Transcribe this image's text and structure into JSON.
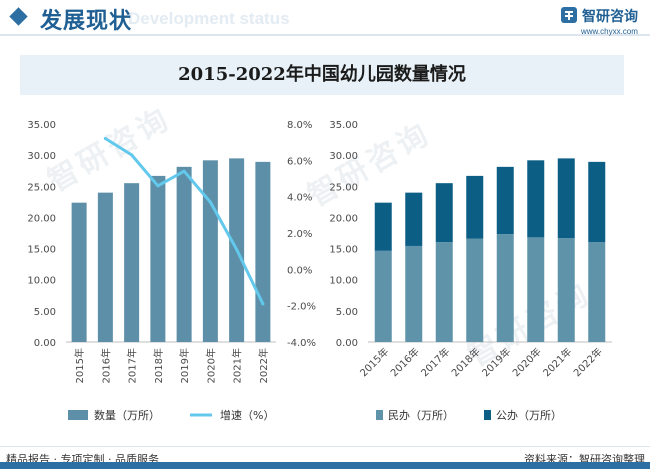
{
  "header": {
    "title": "发展现状",
    "ghost_text": "Development status",
    "logo_name": "智研咨询",
    "logo_url": "www.chyxx.com"
  },
  "watermark": {
    "text": "智研咨询",
    "color": "#c8d2de"
  },
  "colors": {
    "brand": "#2e6fa3",
    "bar": "#5d8fa8",
    "line": "#62c8ec",
    "private": "#5f93aa",
    "public": "#0d5e85"
  },
  "chart_data": [
    {
      "type": "bar+line",
      "title": "2015-2022年中国幼儿园数量情况",
      "categories": [
        "2015年",
        "2016年",
        "2017年",
        "2018年",
        "2019年",
        "2020年",
        "2021年",
        "2022年"
      ],
      "series": [
        {
          "name": "数量（万所）",
          "type": "bar",
          "axis": "left",
          "values": [
            22.37,
            23.98,
            25.5,
            26.67,
            28.12,
            29.17,
            29.48,
            28.92
          ]
        },
        {
          "name": "增速（%）",
          "type": "line",
          "axis": "right",
          "values": [
            null,
            7.2,
            6.3,
            4.6,
            5.4,
            3.7,
            1.1,
            -1.9
          ]
        }
      ],
      "yticks_left": [
        "0.00",
        "5.00",
        "10.00",
        "15.00",
        "20.00",
        "25.00",
        "30.00",
        "35.00"
      ],
      "yticks_right": [
        "-4.0%",
        "-2.0%",
        "0.0%",
        "2.0%",
        "4.0%",
        "6.0%",
        "8.0%"
      ],
      "ylim_left": [
        0,
        35
      ],
      "ylim_right": [
        -4,
        8
      ],
      "grid": false,
      "legend": "bottom"
    },
    {
      "type": "stacked-bar",
      "categories": [
        "2015年",
        "2016年",
        "2017年",
        "2018年",
        "2019年",
        "2020年",
        "2021年",
        "2022年"
      ],
      "series": [
        {
          "name": "民办（万所）",
          "values": [
            14.64,
            15.42,
            16.04,
            16.58,
            17.32,
            16.8,
            16.67,
            16.05
          ]
        },
        {
          "name": "公办（万所）",
          "values": [
            7.73,
            8.56,
            9.46,
            10.09,
            10.8,
            12.37,
            12.81,
            12.87
          ]
        }
      ],
      "yticks": [
        "0.00",
        "5.00",
        "10.00",
        "15.00",
        "20.00",
        "25.00",
        "30.00",
        "35.00"
      ],
      "ylim": [
        0,
        35
      ],
      "grid": false,
      "legend": "bottom"
    }
  ],
  "footer": {
    "left": "精品报告 · 专项定制 · 品质服务",
    "right": "资料来源：智研咨询整理"
  }
}
